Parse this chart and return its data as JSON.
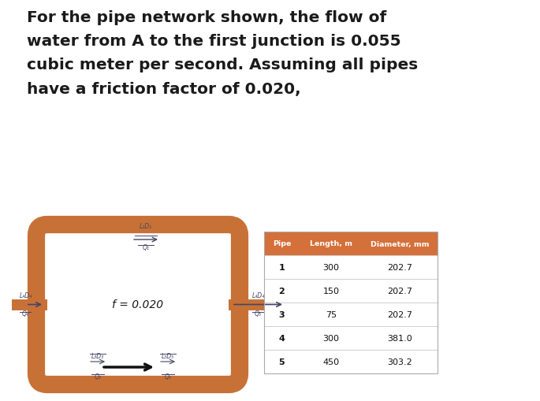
{
  "bg_top_color": "#b8bda0",
  "text_block": "For the pipe network shown, the flow of\nwater from A to the first junction is 0.055\ncubic meter per second. Assuming all pipes\nhave a friction factor of 0.020,",
  "text_fontsize": 14.5,
  "pipe_color": "#c87137",
  "friction_label": "f = 0.020",
  "table_header_color": "#d4703a",
  "table_header_text": [
    "Pipe",
    "Length, m",
    "Diameter, mm"
  ],
  "table_rows": [
    [
      1,
      300,
      "202.7"
    ],
    [
      2,
      150,
      "202.7"
    ],
    [
      3,
      75,
      "202.7"
    ],
    [
      4,
      300,
      "381.0"
    ],
    [
      5,
      450,
      "303.2"
    ]
  ],
  "top_label_L": "L₁D₁",
  "top_label_Q": "Q₁",
  "left_label_L": "L₄D₄",
  "left_label_Q": "Q₄",
  "right_label_L": "L₄D₄",
  "right_label_Q": "Q₅",
  "bot_left_label_L": "L₃D₃",
  "bot_left_label_Q": "Q₃",
  "bot_right_label_L": "L₅D₅",
  "bot_right_label_Q": "Q₅"
}
